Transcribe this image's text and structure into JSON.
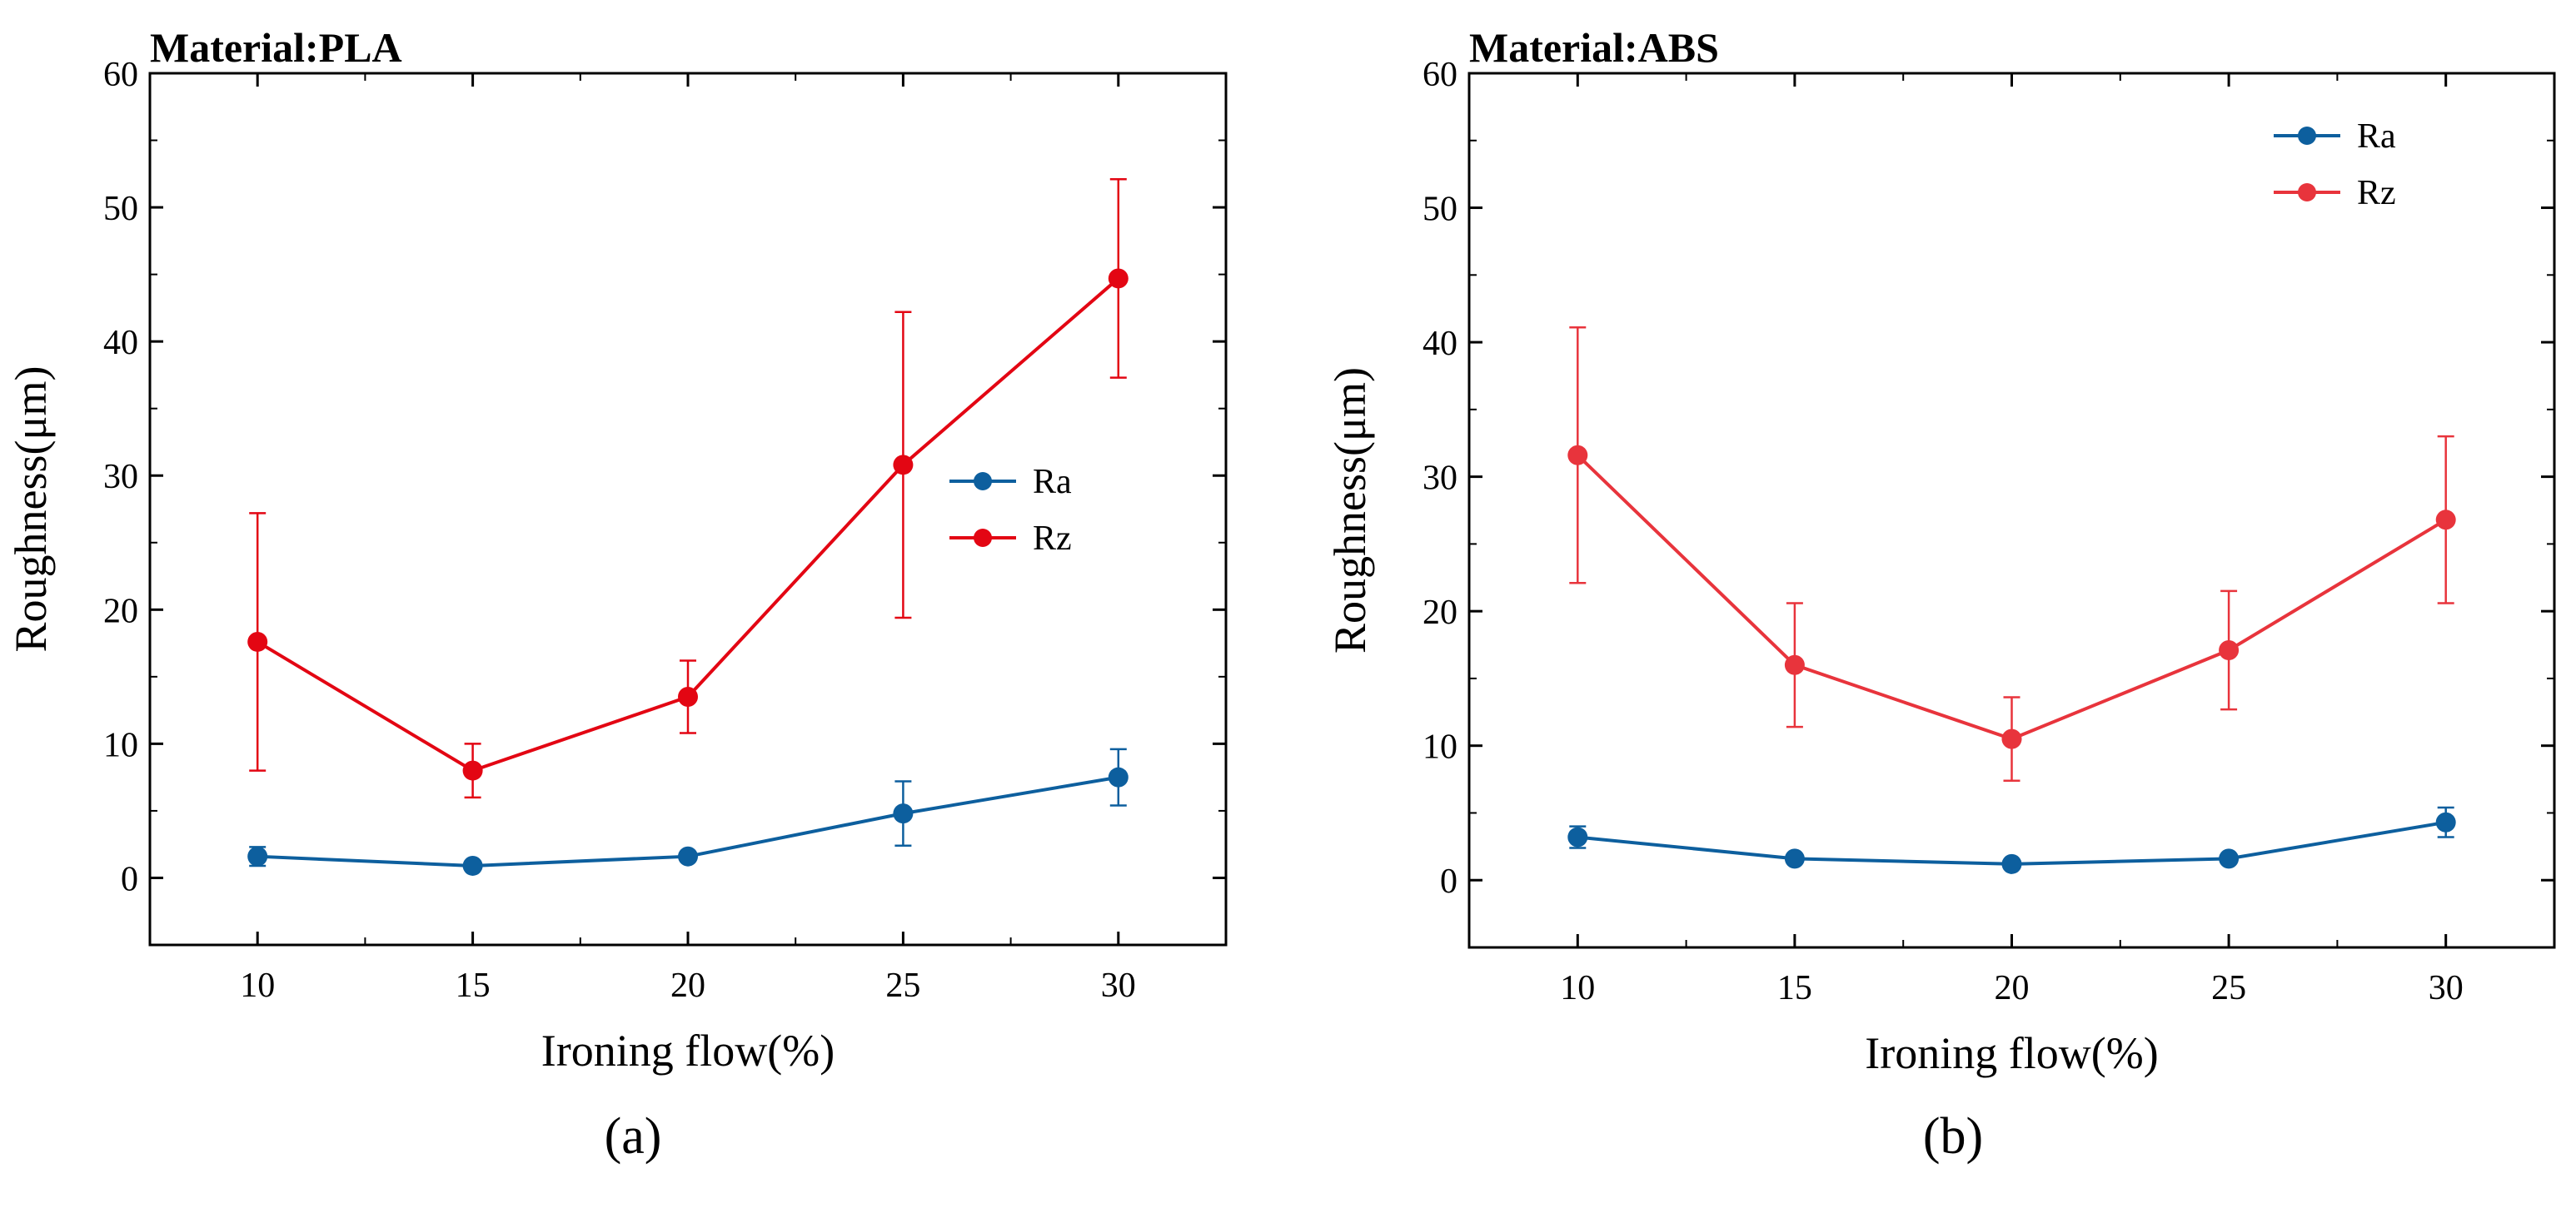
{
  "figure_labels": {
    "a": "(a)",
    "b": "(b)"
  },
  "chart_data": [
    {
      "type": "line",
      "title": "Material:PLA",
      "xlabel": "Ironing flow(%)",
      "ylabel": "Roughness(μm)",
      "xlim": [
        7.5,
        32.5
      ],
      "ylim": [
        -5,
        60
      ],
      "xticks": [
        10,
        15,
        20,
        25,
        30
      ],
      "yticks": [
        0,
        10,
        20,
        30,
        40,
        50,
        60
      ],
      "grid": false,
      "legend_position": "right",
      "series": [
        {
          "name": "Ra",
          "color": "#0d5f9e",
          "x": [
            10,
            15,
            20,
            25,
            30
          ],
          "y": [
            1.6,
            0.9,
            1.6,
            4.8,
            7.5
          ],
          "err": [
            0.7,
            0.3,
            0.3,
            2.4,
            2.1
          ]
        },
        {
          "name": "Rz",
          "color": "#e30613",
          "x": [
            10,
            15,
            20,
            25,
            30
          ],
          "y": [
            17.6,
            8.0,
            13.5,
            30.8,
            44.7
          ],
          "err": [
            9.6,
            2.0,
            2.7,
            11.4,
            7.4
          ]
        }
      ]
    },
    {
      "type": "line",
      "title": "Material:ABS",
      "xlabel": "Ironing flow(%)",
      "ylabel": "Roughness(μm)",
      "xlim": [
        7.5,
        32.5
      ],
      "ylim": [
        -5,
        60
      ],
      "xticks": [
        10,
        15,
        20,
        25,
        30
      ],
      "yticks": [
        0,
        10,
        20,
        30,
        40,
        50,
        60
      ],
      "grid": false,
      "legend_position": "top-right",
      "series": [
        {
          "name": "Ra",
          "color": "#0d5f9e",
          "x": [
            10,
            15,
            20,
            25,
            30
          ],
          "y": [
            3.2,
            1.6,
            1.2,
            1.6,
            4.3
          ],
          "err": [
            0.8,
            0.3,
            0.3,
            0.3,
            1.1
          ]
        },
        {
          "name": "Rz",
          "color": "#e8343c",
          "x": [
            10,
            15,
            20,
            25,
            30
          ],
          "y": [
            31.6,
            16.0,
            10.5,
            17.1,
            26.8
          ],
          "err": [
            9.5,
            4.6,
            3.1,
            4.4,
            6.2
          ]
        }
      ]
    }
  ]
}
